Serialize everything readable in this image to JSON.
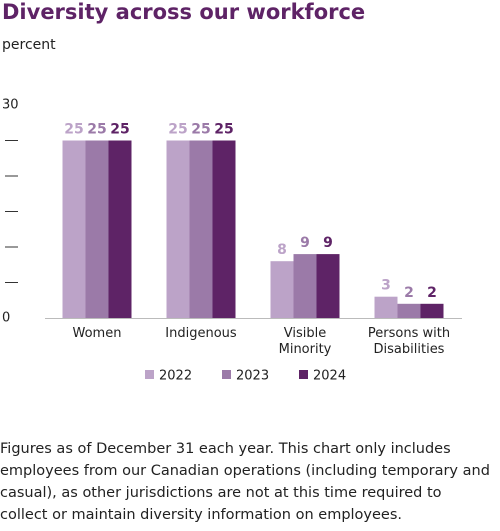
{
  "chart_data": {
    "type": "bar",
    "title": "Diversity across our workforce",
    "subtitle": "percent",
    "categories": [
      "Women",
      "Indigenous",
      "Visible Minority",
      "Persons with Disabilities"
    ],
    "series": [
      {
        "name": "2022",
        "color": "#bca3c8",
        "values": [
          25,
          25,
          8,
          3
        ]
      },
      {
        "name": "2023",
        "color": "#9b7aa8",
        "values": [
          25,
          25,
          9,
          2
        ]
      },
      {
        "name": "2024",
        "color": "#5e2366",
        "values": [
          25,
          25,
          9,
          2
        ]
      }
    ],
    "ylim": [
      0,
      30
    ],
    "yticks": [
      0,
      30
    ],
    "yticks_minor": [
      5,
      10,
      15,
      20,
      25
    ],
    "note": "Figures as of December 31 each year. This chart only includes employees from our Canadian operations (including temporary and casual), as other jurisdictions are not at this time required to collect or maintain diversity information on employees."
  }
}
